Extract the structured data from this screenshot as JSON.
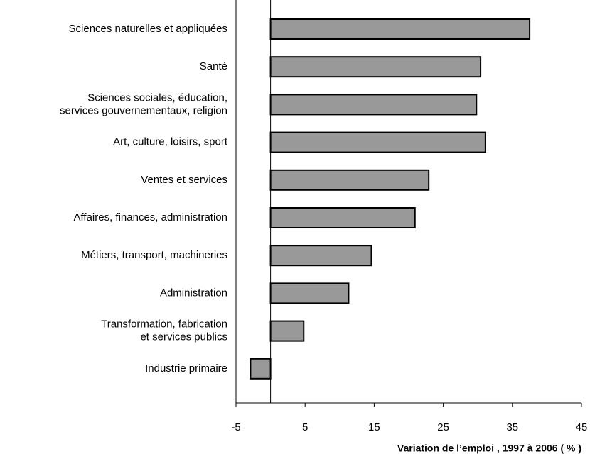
{
  "chart_data": {
    "type": "bar",
    "orientation": "horizontal",
    "xlabel": "Variation de l’emploi , 1997 à 2006 ( % )",
    "categories": [
      "Sciences naturelles et appliquées",
      "Santé",
      "Sciences sociales, éducation,\nservices gouvernementaux, religion",
      "Art, culture, loisirs, sport",
      "Ventes et services",
      "Affaires,  finances, administration",
      "Métiers, transport, machineries",
      "Administration",
      "Transformation, fabrication\net services publics",
      "Industrie primaire"
    ],
    "values": [
      37.5,
      30.4,
      29.8,
      31.1,
      22.9,
      20.9,
      14.6,
      11.3,
      4.8,
      -2.9
    ],
    "color": "#999999",
    "xlim": [
      -5,
      45
    ],
    "xticks": [
      -5,
      5,
      15,
      25,
      35,
      45
    ]
  }
}
